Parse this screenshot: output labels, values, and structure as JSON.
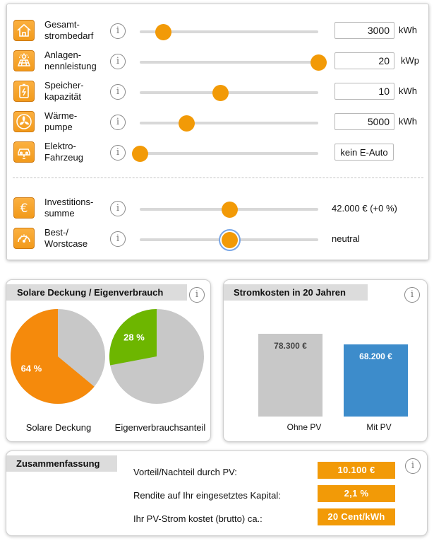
{
  "settings": {
    "rows": [
      {
        "label_line1": "Gesamt-",
        "label_line2": "strombedarf",
        "icon": "house-icon",
        "value": "3000",
        "unit": "kWh",
        "slider_fraction": 0.13
      },
      {
        "label_line1": "Anlagen-",
        "label_line2": "nennleistung",
        "icon": "solar-panel-icon",
        "value": "20",
        "unit": "kWp",
        "slider_fraction": 1.0
      },
      {
        "label_line1": "Speicher-",
        "label_line2": "kapazität",
        "icon": "battery-icon",
        "value": "10",
        "unit": "kWh",
        "slider_fraction": 0.45
      },
      {
        "label_line1": "Wärme-",
        "label_line2": "pumpe",
        "icon": "fan-icon",
        "value": "5000",
        "unit": "kWh",
        "slider_fraction": 0.26
      },
      {
        "label_line1": "Elektro-",
        "label_line2": "Fahrzeug",
        "icon": "electric-car-icon",
        "selected": "kein E-Auto",
        "slider_fraction": 0.0
      }
    ],
    "extra_rows": [
      {
        "label_line1": "Investitions-",
        "label_line2": "summe",
        "icon": "euro-icon",
        "value_text": "42.000 € (+0 %)",
        "slider_fraction": 0.5
      },
      {
        "label_line1": "Best-/",
        "label_line2": "Worstcase",
        "icon": "gauge-icon",
        "value_text": "neutral",
        "slider_fraction": 0.5
      }
    ],
    "info_glyph": "i"
  },
  "solar": {
    "title": "Solare Deckung / Eigenverbrauch",
    "pies": [
      {
        "label": "Solare Deckung",
        "value_label": "64 %",
        "fraction": 0.64,
        "color": "#f58a0c"
      },
      {
        "label": "Eigenverbrauchsanteil",
        "value_label": "28 %",
        "fraction": 0.28,
        "color": "#6db600"
      }
    ],
    "rest_color": "#c8c8c8"
  },
  "costs": {
    "title": "Stromkosten in 20 Jahren",
    "chart_data": {
      "type": "bar",
      "categories": [
        "Ohne PV",
        "Mit PV"
      ],
      "values": [
        78300,
        68200
      ],
      "value_labels": [
        "78.300 €",
        "68.200 €"
      ],
      "colors": [
        "#c8c8c8",
        "#3d8ccb"
      ],
      "ylim": [
        0,
        78300
      ]
    }
  },
  "summary": {
    "title": "Zusammenfassung",
    "items": [
      {
        "label": "Vorteil/Nachteil durch PV:",
        "value": "10.100 €"
      },
      {
        "label": "Rendite auf Ihr eingesetztes Kapital:",
        "value": "2,1 %"
      },
      {
        "label": "Ihr PV-Strom kostet (brutto) ca.:",
        "value": "20 Cent/kWh"
      }
    ]
  },
  "colors": {
    "accent": "#f29a07",
    "blue": "#3d8ccb",
    "green": "#6db600"
  }
}
